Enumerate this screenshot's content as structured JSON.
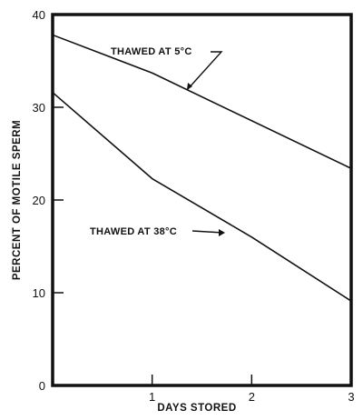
{
  "chart_data": {
    "type": "line",
    "title": "",
    "xlabel": "DAYS STORED",
    "ylabel": "PERCENT OF MOTILE SPERM",
    "xlim": [
      0,
      3
    ],
    "ylim": [
      0,
      40
    ],
    "xticks": [
      1,
      2,
      3
    ],
    "yticks": [
      0,
      10,
      20,
      30,
      40
    ],
    "grid": false,
    "series": [
      {
        "name": "THAWED AT 5°C",
        "x": [
          0,
          1,
          3
        ],
        "y": [
          37.8,
          33.7,
          23.4
        ]
      },
      {
        "name": "THAWED AT 38°C",
        "x": [
          0,
          1,
          2,
          3
        ],
        "y": [
          31.6,
          22.3,
          16.0,
          9.1
        ]
      }
    ]
  }
}
